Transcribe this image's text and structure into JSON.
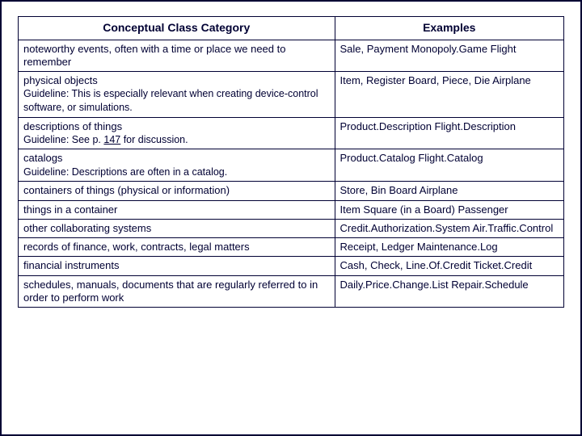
{
  "headers": {
    "left": "Conceptual Class Category",
    "right": "Examples"
  },
  "rows": [
    {
      "cat": "noteworthy events, often with a time or place we need to remember",
      "guide": null,
      "ex": "Sale, Payment Monopoly.Game Flight"
    },
    {
      "cat": "physical objects",
      "guide": "Guideline: This is especially relevant when creating device-control software, or simulations.",
      "ex": "Item, Register Board, Piece, Die Airplane"
    },
    {
      "cat": "descriptions of things",
      "guide_html": "Guideline: See p. <span class=\"u\">147</span> for discussion.",
      "ex": "Product.Description Flight.Description"
    },
    {
      "cat": "catalogs",
      "guide": "Guideline: Descriptions are often in a catalog.",
      "ex": "Product.Catalog Flight.Catalog"
    },
    {
      "cat": "containers of things (physical or information)",
      "guide": null,
      "ex": "Store, Bin Board Airplane"
    },
    {
      "cat": "things in a container",
      "guide": null,
      "ex": "Item Square (in a Board) Passenger"
    },
    {
      "cat": "other collaborating systems",
      "guide": null,
      "ex": "Credit.Authorization.System Air.Traffic.Control"
    },
    {
      "cat": "records of finance, work, contracts, legal matters",
      "guide": null,
      "ex": "Receipt, Ledger Maintenance.Log"
    },
    {
      "cat": "financial instruments",
      "guide": null,
      "ex": "Cash, Check, Line.Of.Credit Ticket.Credit"
    },
    {
      "cat": "schedules, manuals, documents that are regularly referred to in order to perform work",
      "guide": null,
      "ex": "Daily.Price.Change.List Repair.Schedule"
    }
  ],
  "colors": {
    "text": "#000033",
    "border": "#000033",
    "background": "#ffffff"
  },
  "fonts": {
    "family": "Verdana",
    "header_size": 14,
    "body_size": 13,
    "guideline_size": 12.5
  }
}
